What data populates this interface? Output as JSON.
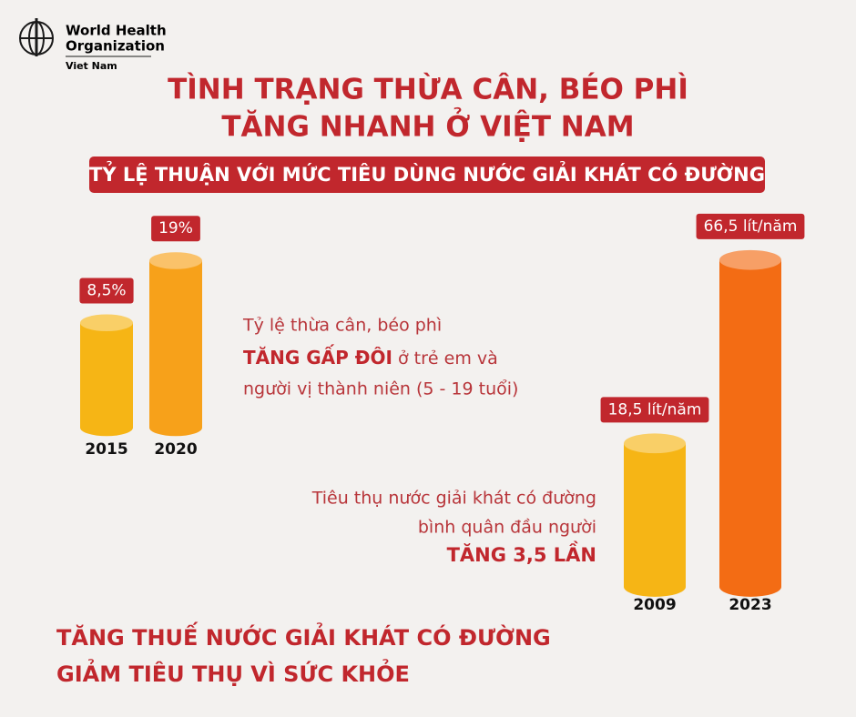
{
  "header": {
    "org_line1": "World Health",
    "org_line2": "Organization",
    "country": "Viet Nam"
  },
  "title": [
    "TÌNH TRẠNG THỪA CÂN, BÉO PHÌ",
    "TĂNG NHANH Ở VIỆT NAM"
  ],
  "subtitle": "TỶ LỆ THUẬN VỚI MỨC TIÊU DÙNG NƯỚC GIẢI KHÁT CÓ ĐƯỜNG",
  "chart_data": [
    {
      "type": "bar",
      "categories": [
        "2015",
        "2020"
      ],
      "values": [
        8.5,
        19
      ],
      "value_labels": [
        "8,5%",
        "19%"
      ],
      "colors": [
        "#f6b515",
        "#f7a11a"
      ]
    },
    {
      "type": "bar",
      "categories": [
        "2009",
        "2023"
      ],
      "values": [
        18.5,
        66.5
      ],
      "value_labels": [
        "18,5 lít/năm",
        "66,5 lít/năm"
      ],
      "colors": [
        "#f6b515",
        "#f36c14"
      ]
    }
  ],
  "caption1": {
    "line1": "Tỷ lệ thừa cân, béo phì",
    "line2_bold": "TĂNG GẤP ĐÔI",
    "line2_rest": " ở trẻ em và",
    "line3": "người vị thành niên (5 - 19 tuổi)"
  },
  "caption2": {
    "line1": "Tiêu thụ nước giải khát có đường",
    "line2": "bình quân đầu người",
    "line3_bold": "TĂNG 3,5 LẦN"
  },
  "footer": [
    "TĂNG THUẾ NƯỚC GIẢI KHÁT CÓ ĐƯỜNG",
    "GIẢM TIÊU THỤ VÌ SỨC KHỎE"
  ]
}
